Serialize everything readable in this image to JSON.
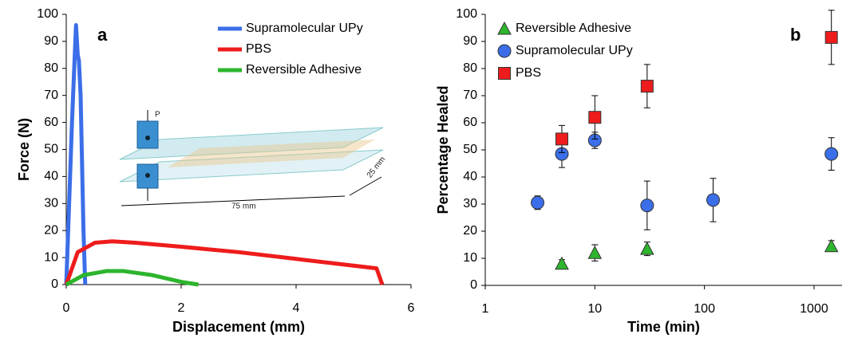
{
  "chart_data": [
    {
      "type": "line",
      "panel_label": "a",
      "xlabel": "Displacement (mm)",
      "ylabel": "Force (N)",
      "xlim": [
        0,
        6
      ],
      "xticks": [
        0,
        2,
        4,
        6
      ],
      "ylim": [
        0,
        100
      ],
      "yticks": [
        0,
        10,
        20,
        30,
        40,
        50,
        60,
        70,
        80,
        90,
        100
      ],
      "annotations": [
        "P",
        "75 mm",
        "25 mm"
      ],
      "series": [
        {
          "name": "Supramolecular UPy",
          "color": "#3b6ee8",
          "x": [
            0,
            0.1,
            0.17,
            0.2,
            0.22,
            0.25,
            0.3,
            0.33
          ],
          "values": [
            0,
            60,
            96,
            85,
            83,
            70,
            20,
            0
          ]
        },
        {
          "name": "PBS",
          "color": "#ee1c1c",
          "x": [
            0,
            0.2,
            0.5,
            0.8,
            1.2,
            2,
            3,
            4,
            5,
            5.4,
            5.45,
            5.5
          ],
          "values": [
            0,
            12,
            15.5,
            16,
            15.5,
            14,
            12,
            9.5,
            7,
            6,
            3,
            0
          ]
        },
        {
          "name": "Reversible Adhesive",
          "color": "#2db52d",
          "x": [
            0,
            0.3,
            0.7,
            1,
            1.5,
            2,
            2.3
          ],
          "values": [
            0,
            3.5,
            5,
            5,
            3.5,
            1,
            0
          ]
        }
      ]
    },
    {
      "type": "scatter",
      "panel_label": "b",
      "xlabel": "Time (min)",
      "ylabel": "Percentage Healed",
      "xscale": "log",
      "xlim": [
        1,
        1800
      ],
      "xticks": [
        1,
        10,
        100,
        1000
      ],
      "ylim": [
        0,
        100
      ],
      "yticks": [
        0,
        10,
        20,
        30,
        40,
        50,
        60,
        70,
        80,
        90,
        100
      ],
      "series": [
        {
          "name": "Reversible Adhesive",
          "color": "#2db52d",
          "marker": "triangle",
          "x": [
            5,
            10,
            30,
            1440
          ],
          "values": [
            8,
            12,
            13.5,
            14.5
          ],
          "errors": [
            1.5,
            3,
            2.5,
            2
          ]
        },
        {
          "name": "Supramolecular UPy",
          "color": "#3b6ee8",
          "marker": "circle",
          "x": [
            3,
            5,
            10,
            30,
            120,
            1440
          ],
          "values": [
            30.5,
            48.5,
            53.5,
            29.5,
            31.5,
            48.5
          ],
          "errors": [
            2.5,
            5,
            3,
            9,
            8,
            6
          ]
        },
        {
          "name": "PBS",
          "color": "#ee1c1c",
          "marker": "square",
          "x": [
            5,
            10,
            30,
            1440
          ],
          "values": [
            54,
            62,
            73.5,
            91.5
          ],
          "errors": [
            5,
            8,
            8,
            10
          ]
        }
      ]
    }
  ]
}
